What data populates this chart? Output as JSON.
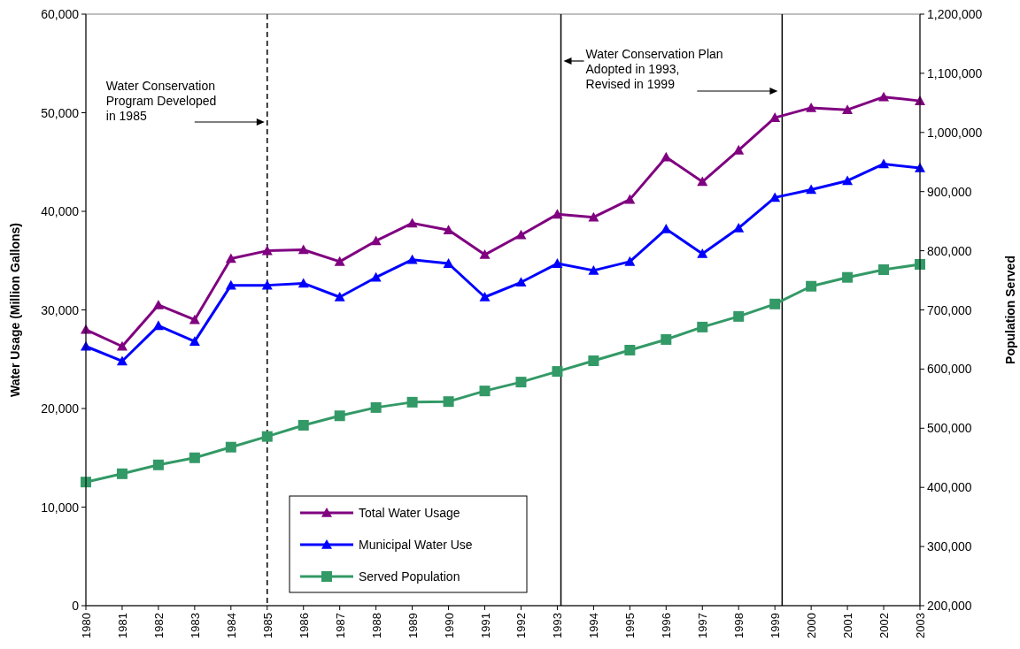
{
  "chart_data": {
    "type": "line",
    "xlabel": null,
    "ylabel": "Water Usage (Million Gallons)",
    "y2label": "Population Served",
    "x": [
      1980,
      1981,
      1982,
      1983,
      1984,
      1985,
      1986,
      1987,
      1988,
      1989,
      1990,
      1991,
      1992,
      1993,
      1994,
      1995,
      1996,
      1997,
      1998,
      1999,
      2000,
      2001,
      2002,
      2003
    ],
    "xlim": [
      1980,
      2003
    ],
    "xticks": [
      1980,
      1981,
      1982,
      1983,
      1984,
      1985,
      1986,
      1987,
      1988,
      1989,
      1990,
      1991,
      1992,
      1993,
      1994,
      1995,
      1996,
      1997,
      1998,
      1999,
      2000,
      2001,
      2002,
      2003
    ],
    "ylim": [
      0,
      60000
    ],
    "yticks": [
      {
        "value": 0,
        "label": "0"
      },
      {
        "value": 10000,
        "label": "10,000"
      },
      {
        "value": 20000,
        "label": "20,000"
      },
      {
        "value": 30000,
        "label": "30,000"
      },
      {
        "value": 40000,
        "label": "40,000"
      },
      {
        "value": 50000,
        "label": "50,000"
      },
      {
        "value": 60000,
        "label": "60,000"
      }
    ],
    "y2lim": [
      200000,
      1200000
    ],
    "y2ticks": [
      {
        "value": 200000,
        "label": "200,000"
      },
      {
        "value": 300000,
        "label": "300,000"
      },
      {
        "value": 400000,
        "label": "400,000"
      },
      {
        "value": 500000,
        "label": "500,000"
      },
      {
        "value": 600000,
        "label": "600,000"
      },
      {
        "value": 700000,
        "label": "700,000"
      },
      {
        "value": 800000,
        "label": "800,000"
      },
      {
        "value": 900000,
        "label": "900,000"
      },
      {
        "value": 1000000,
        "label": "1,000,000"
      },
      {
        "value": 1100000,
        "label": "1,100,000"
      },
      {
        "value": 1200000,
        "label": "1,200,000"
      }
    ],
    "series": [
      {
        "name": "Total Water Usage",
        "color": "#800080",
        "marker": "triangle",
        "values": [
          28000,
          26300,
          30500,
          29000,
          35200,
          36000,
          36100,
          34900,
          37000,
          38800,
          38100,
          35600,
          37600,
          39700,
          39400,
          41200,
          45500,
          43000,
          46200,
          49500,
          50500,
          50300,
          51600,
          51200
        ]
      },
      {
        "name": "Municipal Water Use",
        "color": "#0000ff",
        "marker": "triangle",
        "values": [
          26300,
          24800,
          28400,
          26800,
          32500,
          32500,
          32700,
          31300,
          33300,
          35100,
          34700,
          31300,
          32800,
          34700,
          34000,
          34900,
          38200,
          35700,
          38300,
          41400,
          42200,
          43100,
          44800,
          44400
        ]
      },
      {
        "name": "Served Population",
        "color": "#339966",
        "marker": "square",
        "axis": "y2",
        "values": [
          409000,
          423000,
          438000,
          450000,
          468000,
          486000,
          505000,
          521000,
          535000,
          544000,
          545000,
          563000,
          578000,
          596000,
          614000,
          632000,
          650000,
          671000,
          689000,
          710000,
          740000,
          755000,
          768000,
          777000
        ]
      }
    ],
    "ref_lines": [
      {
        "axis": "x",
        "value": 1985,
        "label": "Water Conservation Program Developed in 1985",
        "line_style": "dashed",
        "color": "#000000"
      },
      {
        "axis": "x",
        "value": 1993.1,
        "label": "Water Conservation Plan Adopted in 1993, Revised in 1999",
        "line_style": "solid",
        "color": "#000000"
      },
      {
        "axis": "x",
        "value": 1999.2,
        "label": null,
        "line_style": "solid",
        "color": "#000000"
      }
    ],
    "grid": false,
    "legend": "bottom"
  }
}
